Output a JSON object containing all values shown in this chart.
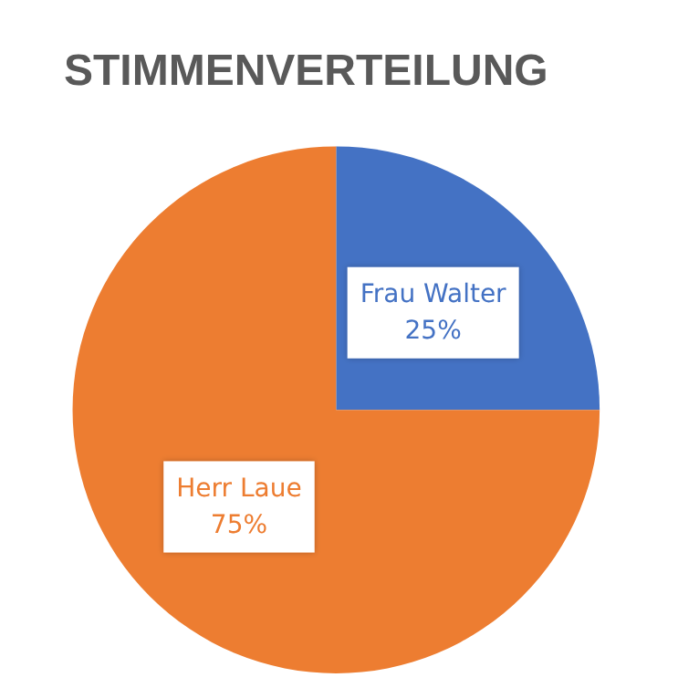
{
  "chart_data": {
    "type": "pie",
    "title": "STIMMENVERTEILUNG",
    "categories": [
      "Frau Walter",
      "Herr Laue"
    ],
    "values": [
      25,
      75
    ],
    "colors": [
      "#4472c4",
      "#ed7d31"
    ],
    "value_labels": [
      "25%",
      "75%"
    ],
    "legend": false
  }
}
